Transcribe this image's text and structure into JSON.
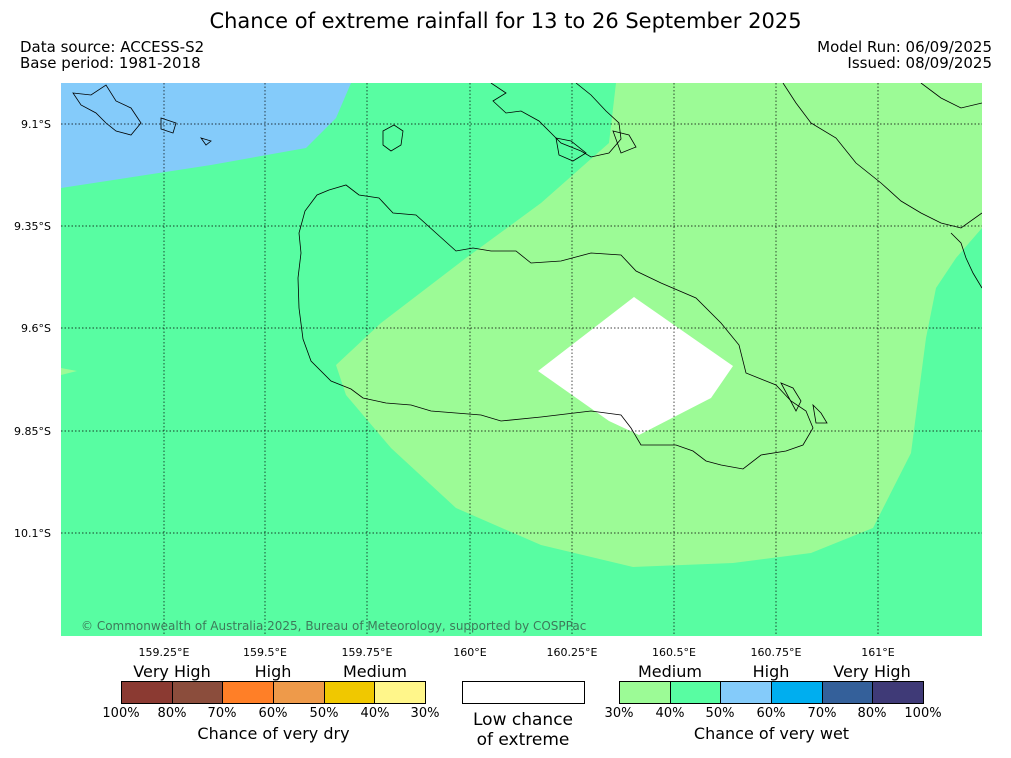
{
  "title": "Chance of extreme rainfall for 13 to 26 September 2025",
  "data_source": "Data source: ACCESS-S2",
  "base_period": "Base period: 1981-2018",
  "model_run": "Model Run: 06/09/2025",
  "issued": "Issued: 08/09/2025",
  "latitude_ticks": [
    "9.1°S",
    "9.35°S",
    "9.6°S",
    "9.85°S",
    "10.1°S"
  ],
  "longitude_ticks": [
    "159.25°E",
    "159.5°E",
    "159.75°E",
    "160°E",
    "160.25°E",
    "160.5°E",
    "160.75°E",
    "161°E"
  ],
  "copyright": "© Commonwealth of Australia 2025, Bureau of Meteorology, supported by COSPPac",
  "dry_legend": {
    "categories": [
      "Very High",
      "High",
      "Medium"
    ],
    "colors": [
      "#8b3a32",
      "#8b4d3c",
      "#ff7f27",
      "#ee9a4a",
      "#f0c800",
      "#fff68a"
    ],
    "ticks": [
      "100%",
      "80%",
      "70%",
      "60%",
      "50%",
      "40%",
      "30%"
    ],
    "caption": "Chance of very dry"
  },
  "low_chance": {
    "line1": "Low chance",
    "line2": "of extreme",
    "color": "#ffffff"
  },
  "wet_legend": {
    "categories": [
      "Medium",
      "High",
      "Very High"
    ],
    "colors": [
      "#9cfb96",
      "#58fda2",
      "#84cbfa",
      "#00aeef",
      "#34609a",
      "#3f3a77"
    ],
    "ticks": [
      "30%",
      "40%",
      "50%",
      "60%",
      "70%",
      "80%",
      "100%"
    ],
    "caption": "Chance of very wet"
  }
}
